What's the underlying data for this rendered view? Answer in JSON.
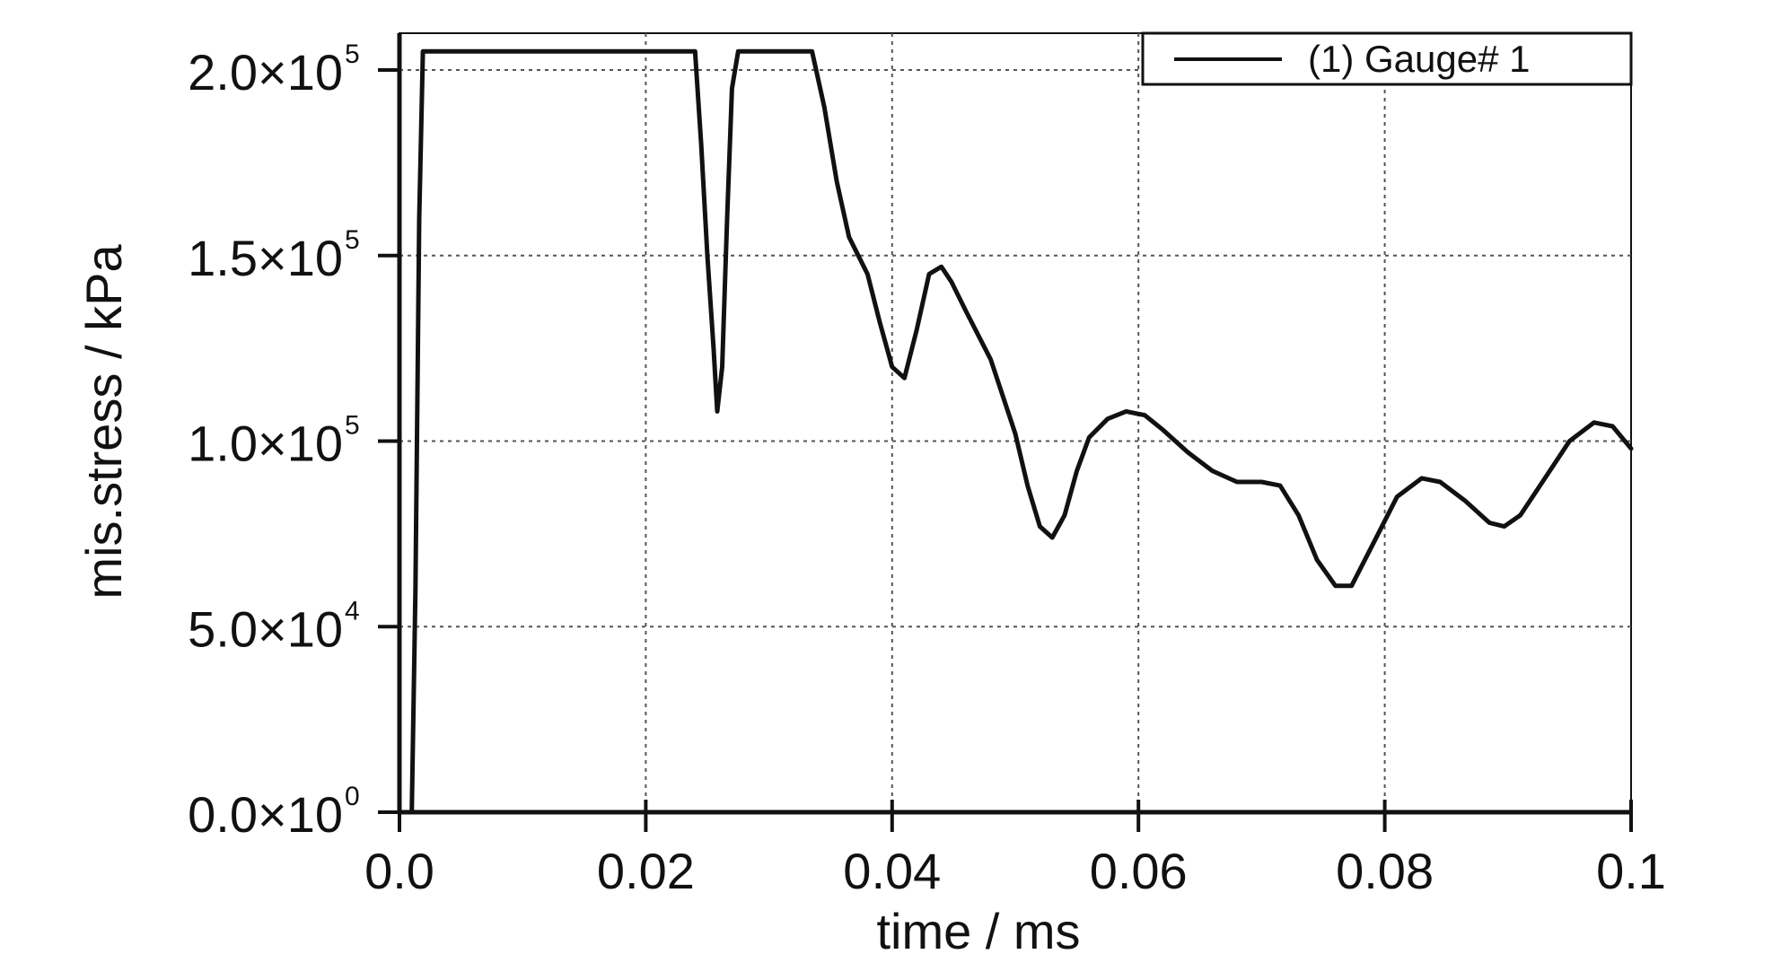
{
  "chart_data": {
    "type": "line",
    "xlabel": "time / ms",
    "ylabel": "mis.stress / kPa",
    "xlim": [
      0,
      0.1
    ],
    "ylim": [
      0,
      210000
    ],
    "grid": true,
    "legend_position": "top-right",
    "x_ticks": [
      {
        "value": 0.0,
        "label": "0.0"
      },
      {
        "value": 0.02,
        "label": "0.02"
      },
      {
        "value": 0.04,
        "label": "0.04"
      },
      {
        "value": 0.06,
        "label": "0.06"
      },
      {
        "value": 0.08,
        "label": "0.08"
      },
      {
        "value": 0.1,
        "label": "0.1"
      }
    ],
    "y_ticks": [
      {
        "value": 0,
        "mantissa": "0.0×10",
        "exp": "0"
      },
      {
        "value": 50000,
        "mantissa": "5.0×10",
        "exp": "4"
      },
      {
        "value": 100000,
        "mantissa": "1.0×10",
        "exp": "5"
      },
      {
        "value": 150000,
        "mantissa": "1.5×10",
        "exp": "5"
      },
      {
        "value": 200000,
        "mantissa": "2.0×10",
        "exp": "5"
      }
    ],
    "series": [
      {
        "name": "(1) Gauge# 1",
        "color": "#111111",
        "x": [
          0.0,
          0.001,
          0.0013,
          0.0016,
          0.0019,
          0.0022,
          0.01,
          0.02,
          0.024,
          0.0245,
          0.025,
          0.0255,
          0.0258,
          0.0262,
          0.0266,
          0.027,
          0.0275,
          0.028,
          0.03,
          0.0335,
          0.0345,
          0.0355,
          0.0365,
          0.038,
          0.039,
          0.04,
          0.041,
          0.042,
          0.043,
          0.044,
          0.0448,
          0.046,
          0.048,
          0.05,
          0.051,
          0.052,
          0.053,
          0.054,
          0.055,
          0.056,
          0.0575,
          0.059,
          0.0605,
          0.062,
          0.064,
          0.066,
          0.068,
          0.07,
          0.0715,
          0.073,
          0.0745,
          0.076,
          0.0773,
          0.079,
          0.081,
          0.083,
          0.0845,
          0.0865,
          0.0885,
          0.0897,
          0.091,
          0.093,
          0.095,
          0.097,
          0.0985,
          0.1
        ],
        "y": [
          0,
          0,
          60000,
          160000,
          205000,
          205000,
          205000,
          205000,
          205000,
          180000,
          150000,
          125000,
          108000,
          120000,
          160000,
          195000,
          205000,
          205000,
          205000,
          205000,
          190000,
          170000,
          155000,
          145000,
          132000,
          120000,
          117000,
          130000,
          145000,
          147000,
          143000,
          135000,
          122000,
          102000,
          88000,
          77000,
          74000,
          80000,
          92000,
          101000,
          106000,
          108000,
          107000,
          103000,
          97000,
          92000,
          89000,
          89000,
          88000,
          80000,
          68000,
          61000,
          61000,
          72000,
          85000,
          90000,
          89000,
          84000,
          78000,
          77000,
          80000,
          90000,
          100000,
          105000,
          104000,
          98000
        ]
      }
    ]
  }
}
